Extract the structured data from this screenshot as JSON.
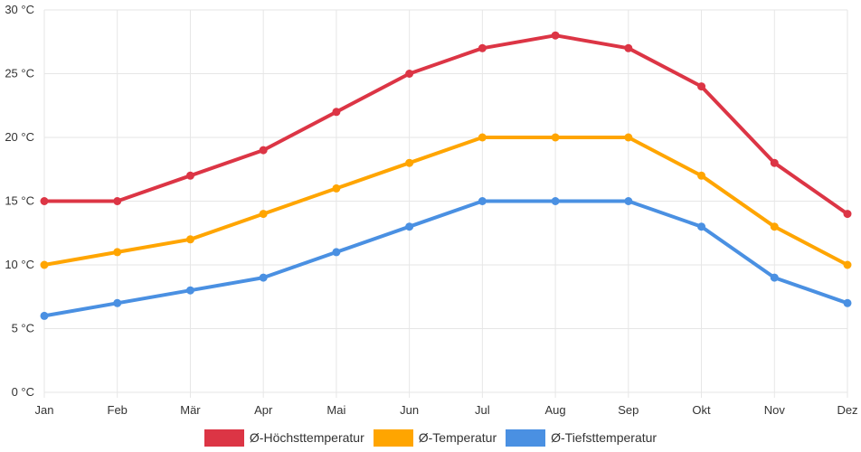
{
  "chart_data": {
    "type": "line",
    "categories": [
      "Jan",
      "Feb",
      "Mär",
      "Apr",
      "Mai",
      "Jun",
      "Jul",
      "Aug",
      "Sep",
      "Okt",
      "Nov",
      "Dez"
    ],
    "ylim": [
      0,
      30
    ],
    "yticks": [
      0,
      5,
      10,
      15,
      20,
      25,
      30
    ],
    "yunit": "°C",
    "title": "",
    "xlabel": "",
    "ylabel": "",
    "grid": true,
    "legend_position": "bottom-center",
    "series": [
      {
        "name": "Ø-Höchsttemperatur",
        "color": "#dc3545",
        "values": [
          15,
          15,
          17,
          19,
          22,
          25,
          27,
          28,
          27,
          24,
          18,
          14
        ]
      },
      {
        "name": "Ø-Temperatur",
        "color": "#ffa500",
        "values": [
          10,
          11,
          12,
          14,
          16,
          18,
          20,
          20,
          20,
          17,
          13,
          10
        ]
      },
      {
        "name": "Ø-Tiefsttemperatur",
        "color": "#4a90e2",
        "values": [
          6,
          7,
          8,
          9,
          11,
          13,
          15,
          15,
          15,
          13,
          9,
          7
        ]
      }
    ]
  }
}
